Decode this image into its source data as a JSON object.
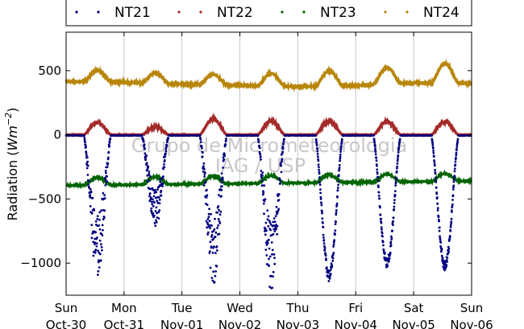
{
  "chart_data": {
    "type": "scatter",
    "title": "",
    "xlabel": "",
    "ylabel": "Radiation (Wm^-2)",
    "ylabel_main": "Radiation (",
    "ylabel_unit": "Wm",
    "ylabel_exp": "−2",
    "ylabel_close": ")",
    "ylim": [
      -1250,
      800
    ],
    "xlim": [
      0,
      7
    ],
    "grid": "vertical",
    "legend_position": "top",
    "watermark_lines": [
      "Grupo de Micrometeorologia",
      "IAG / USP"
    ],
    "x_ticks": [
      {
        "x": 0,
        "day": "Sun",
        "date": "Oct-30"
      },
      {
        "x": 1,
        "day": "Mon",
        "date": "Oct-31"
      },
      {
        "x": 2,
        "day": "Tue",
        "date": "Nov-01"
      },
      {
        "x": 3,
        "day": "Wed",
        "date": "Nov-02"
      },
      {
        "x": 4,
        "day": "Thu",
        "date": "Nov-03"
      },
      {
        "x": 5,
        "day": "Fri",
        "date": "Nov-04"
      },
      {
        "x": 6,
        "day": "Sat",
        "date": "Nov-05"
      },
      {
        "x": 7,
        "day": "Sun",
        "date": "Nov-06"
      }
    ],
    "y_ticks": [
      {
        "value": 500,
        "label": "500"
      },
      {
        "value": 0,
        "label": "0"
      },
      {
        "value": -500,
        "label": "−500"
      },
      {
        "value": -1000,
        "label": "−1000"
      }
    ],
    "series": [
      {
        "name": "NT21",
        "color": "#000080",
        "baseline": -5,
        "daily_min": [
          -1120,
          -740,
          -1170,
          -1215,
          -1140,
          -1040,
          -1060
        ]
      },
      {
        "name": "NT22",
        "color": "#a52a2a",
        "baseline": 0,
        "daily_max": [
          100,
          60,
          125,
          110,
          110,
          105,
          105
        ]
      },
      {
        "name": "NT23",
        "color": "#006400",
        "night_start": -395,
        "night_end": -360,
        "day_bump": 60
      },
      {
        "name": "NT24",
        "color": "#b8860b",
        "night": [
          415,
          410,
          395,
          385,
          375,
          385,
          405,
          400
        ],
        "daily_max": [
          500,
          480,
          470,
          480,
          500,
          525,
          555
        ]
      }
    ]
  }
}
